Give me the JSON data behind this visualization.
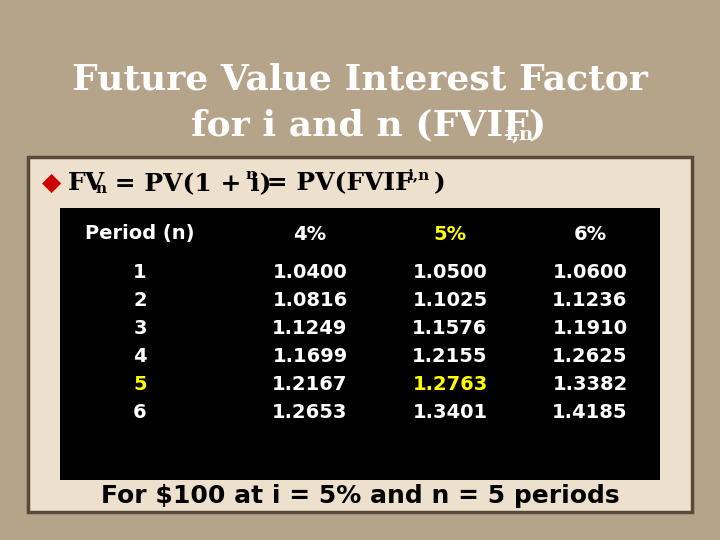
{
  "title_line1": "Future Value Interest Factor",
  "title_line2": "for i and n (FVIF",
  "title_subscript": "i,n",
  "title_end": ")",
  "bg_color": "#B5A48A",
  "title_color": "#FFFFFF",
  "box_bg": "#EDE0CC",
  "table_bg": "#000000",
  "table_header_color": "#FFFFFF",
  "table_pct5_color": "#FFFF00",
  "table_data_color": "#FFFFFF",
  "highlight_row": 5,
  "periods": [
    1,
    2,
    3,
    4,
    5,
    6
  ],
  "col_4pct": [
    1.04,
    1.0816,
    1.1249,
    1.1699,
    1.2167,
    1.2653
  ],
  "col_5pct": [
    1.05,
    1.1025,
    1.1576,
    1.2155,
    1.2763,
    1.3401
  ],
  "col_6pct": [
    1.06,
    1.1236,
    1.191,
    1.2625,
    1.3382,
    1.4185
  ],
  "footer_text": "For $100 at i = 5% and n = 5 periods",
  "diamond_color": "#CC0000",
  "border_color": "#5a4a3a"
}
